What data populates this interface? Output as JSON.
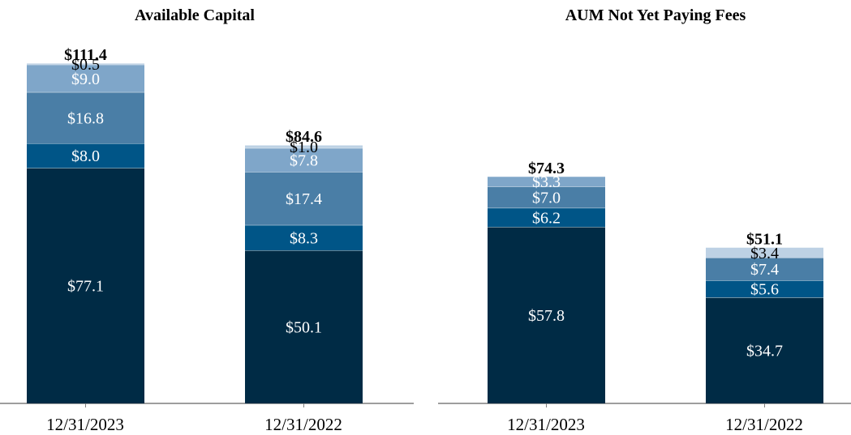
{
  "chart_data": [
    {
      "type": "bar",
      "stacked": true,
      "title": "Available Capital",
      "categories": [
        "12/31/2023",
        "12/31/2022"
      ],
      "totals": [
        "$111.4",
        "$84.6"
      ],
      "series": [
        {
          "values": [
            77.1,
            50.1
          ],
          "labels": [
            "$77.1",
            "$50.1"
          ],
          "color": "#002b45"
        },
        {
          "values": [
            8.0,
            8.3
          ],
          "labels": [
            "$8.0",
            "$8.3"
          ],
          "color": "#005587"
        },
        {
          "values": [
            16.8,
            17.4
          ],
          "labels": [
            "$16.8",
            "$17.4"
          ],
          "color": "#4a7ea6"
        },
        {
          "values": [
            9.0,
            7.8
          ],
          "labels": [
            "$9.0",
            "$7.8"
          ],
          "color": "#7fa6c9"
        },
        {
          "values": [
            0.5,
            1.0
          ],
          "labels": [
            "$0.5",
            "$1.0"
          ],
          "color": "#bdd1e4"
        }
      ],
      "ylim": [
        0,
        115
      ]
    },
    {
      "type": "bar",
      "stacked": true,
      "title": "AUM Not Yet Paying Fees",
      "categories": [
        "12/31/2023",
        "12/31/2022"
      ],
      "totals": [
        "$74.3",
        "$51.1"
      ],
      "series": [
        {
          "values": [
            57.8,
            34.7
          ],
          "labels": [
            "$57.8",
            "$34.7"
          ],
          "color": "#002b45"
        },
        {
          "values": [
            6.2,
            5.6
          ],
          "labels": [
            "$6.2",
            "$5.6"
          ],
          "color": "#005587"
        },
        {
          "values": [
            7.0,
            7.4
          ],
          "labels": [
            "$7.0",
            "$7.4"
          ],
          "color": "#4a7ea6"
        },
        {
          "values": [
            3.3,
            0.0
          ],
          "labels": [
            "$3.3",
            ""
          ],
          "color": "#7fa6c9"
        },
        {
          "values": [
            0.0,
            3.4
          ],
          "labels": [
            "",
            "$3.4"
          ],
          "color": "#bdd1e4"
        }
      ],
      "ylim": [
        0,
        115
      ]
    }
  ]
}
